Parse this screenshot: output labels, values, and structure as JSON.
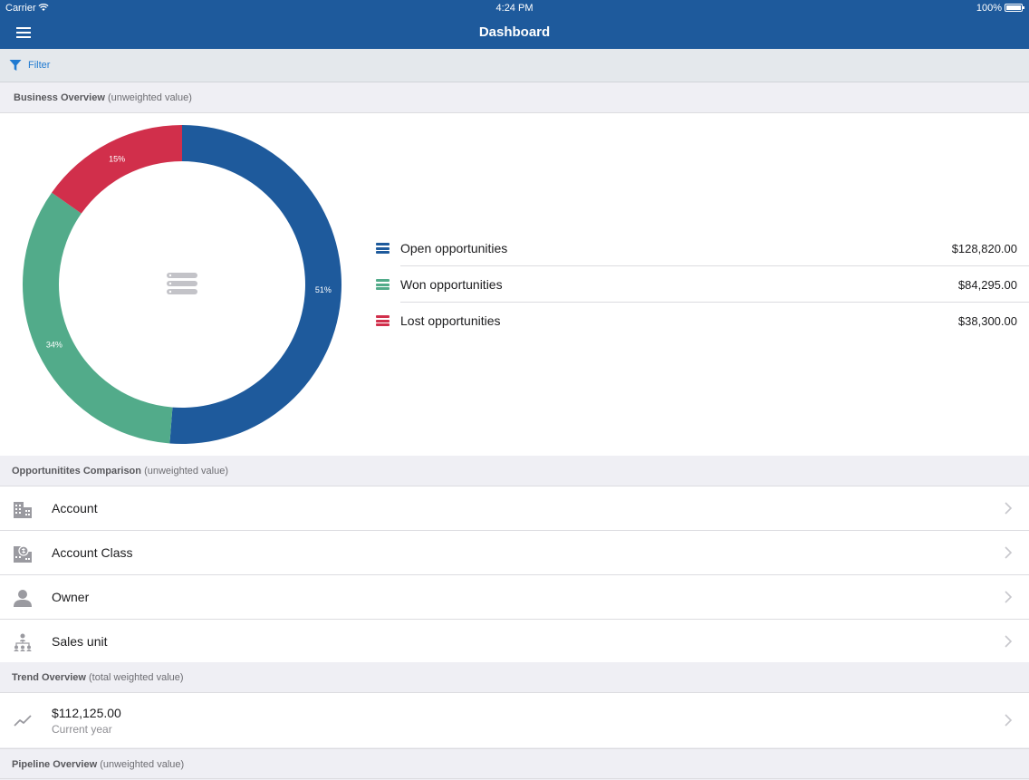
{
  "status_bar": {
    "carrier": "Carrier",
    "time": "4:24 PM",
    "battery": "100%"
  },
  "nav": {
    "title": "Dashboard"
  },
  "filter": {
    "label": "Filter"
  },
  "business_overview": {
    "header_title": "Business Overview",
    "header_note": "(unweighted value)",
    "legend": [
      {
        "label": "Open opportunities",
        "value": "$128,820.00",
        "color": "#1e5a9c"
      },
      {
        "label": "Won opportunities",
        "value": "$84,295.00",
        "color": "#52ab8a"
      },
      {
        "label": "Lost opportunities",
        "value": "$38,300.00",
        "color": "#d12f4b"
      }
    ]
  },
  "chart_data": {
    "type": "pie",
    "categories": [
      "Open opportunities",
      "Won opportunities",
      "Lost opportunities"
    ],
    "values": [
      128820,
      84295,
      38300
    ],
    "labels": [
      "51%",
      "34%",
      "15%"
    ],
    "colors": [
      "#1e5a9c",
      "#52ab8a",
      "#d12f4b"
    ],
    "donut": true
  },
  "comparison": {
    "header_title": "Opportunitites Comparison",
    "header_note": "(unweighted value)",
    "items": [
      {
        "label": "Account",
        "icon": "building-icon"
      },
      {
        "label": "Account Class",
        "icon": "account-class-icon"
      },
      {
        "label": "Owner",
        "icon": "person-icon"
      },
      {
        "label": "Sales unit",
        "icon": "org-chart-icon"
      }
    ]
  },
  "trend": {
    "header_title": "Trend Overview",
    "header_note": "(total weighted value)",
    "amount": "$112,125.00",
    "period": "Current year"
  },
  "pipeline": {
    "header_title": "Pipeline Overview",
    "header_note": "(unweighted value)"
  }
}
